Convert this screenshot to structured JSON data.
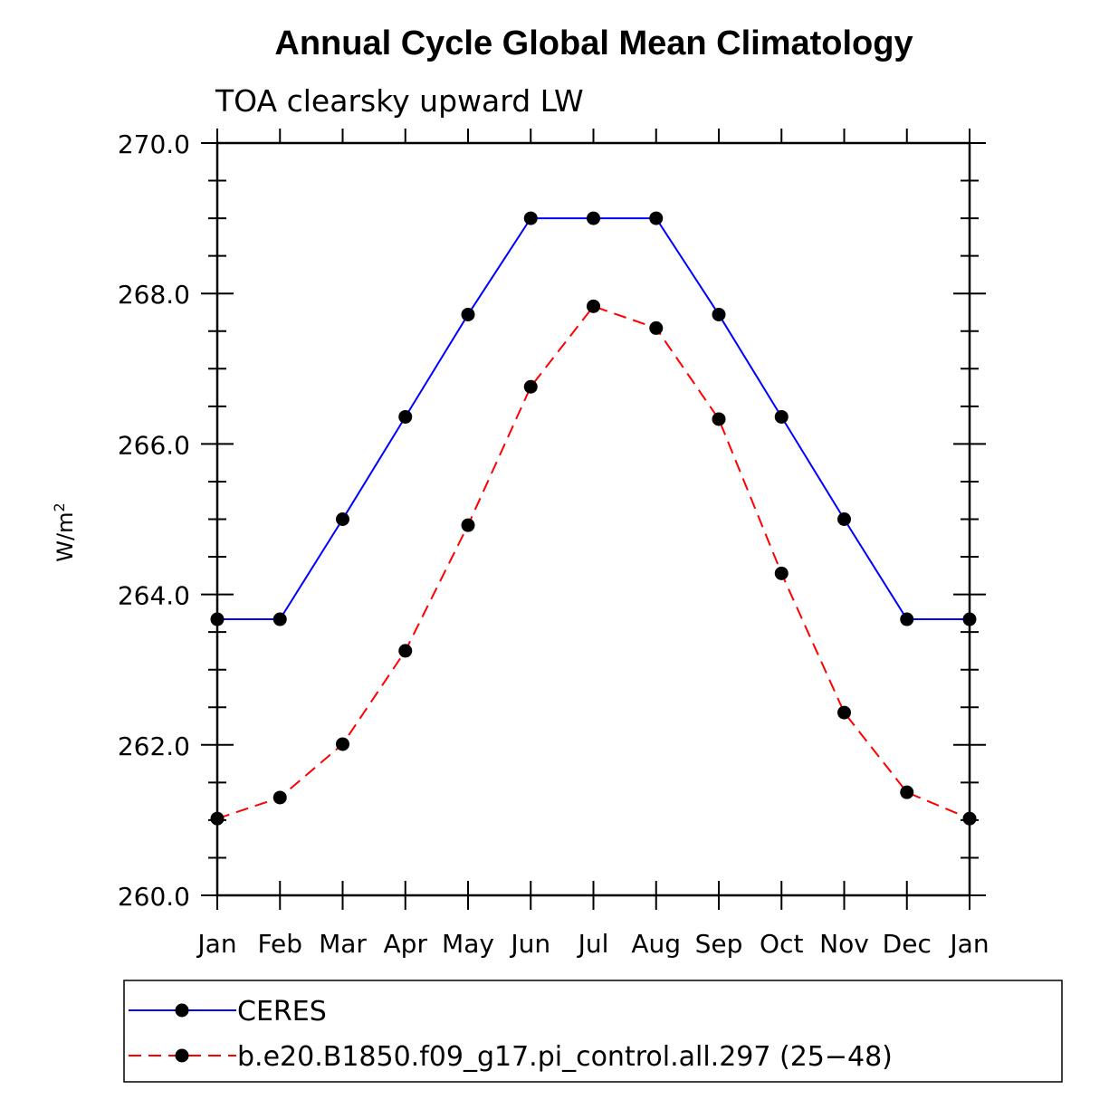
{
  "chart_data": {
    "type": "line",
    "title": "Annual Cycle Global Mean Climatology",
    "subtitle": "TOA clearsky upward LW",
    "ylabel": "W/m",
    "ylabel_superscript": "2",
    "xlabel": "",
    "categories": [
      "Jan",
      "Feb",
      "Mar",
      "Apr",
      "May",
      "Jun",
      "Jul",
      "Aug",
      "Sep",
      "Oct",
      "Nov",
      "Dec",
      "Jan"
    ],
    "ylim": [
      260.0,
      270.0
    ],
    "yticks": [
      "260.0",
      "262.0",
      "264.0",
      "266.0",
      "268.0",
      "270.0"
    ],
    "grid": false,
    "legend_position": "bottom",
    "series": [
      {
        "name": "CERES",
        "color": "#0000ff",
        "dash": "solid",
        "marker": "filled-circle",
        "values": [
          263.67,
          263.67,
          265.0,
          266.36,
          267.72,
          269.0,
          269.0,
          269.0,
          267.72,
          266.36,
          265.0,
          263.67,
          263.67
        ]
      },
      {
        "name": "b.e20.B1850.f09_g17.pi_control.all.297 (25−48)",
        "color": "#ff0000",
        "dash": "dashed",
        "marker": "filled-circle",
        "values": [
          261.02,
          261.3,
          262.01,
          263.25,
          264.92,
          266.76,
          267.83,
          267.54,
          266.33,
          264.28,
          262.43,
          261.37,
          261.02
        ]
      }
    ]
  }
}
